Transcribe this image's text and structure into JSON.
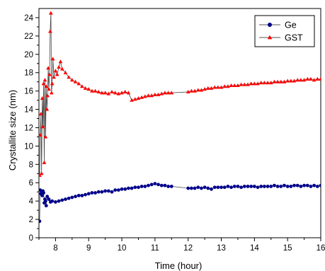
{
  "chart_data": {
    "type": "scatter",
    "xlabel": "Time (hour)",
    "ylabel": "Crystallite size (nm)",
    "xlim": [
      7.5,
      16
    ],
    "ylim": [
      0,
      25
    ],
    "xticks": [
      8,
      9,
      10,
      11,
      12,
      13,
      14,
      15,
      16
    ],
    "yticks": [
      0,
      2,
      4,
      6,
      8,
      10,
      12,
      14,
      16,
      18,
      20,
      22,
      24
    ],
    "grid": false,
    "legend": "top-right",
    "series": [
      {
        "name": "Ge",
        "color": "#00008b",
        "marker": "circle",
        "x": [
          7.52,
          7.54,
          7.56,
          7.58,
          7.6,
          7.62,
          7.64,
          7.66,
          7.68,
          7.7,
          7.72,
          7.75,
          7.8,
          7.85,
          7.9,
          8.0,
          8.1,
          8.2,
          8.3,
          8.4,
          8.5,
          8.6,
          8.7,
          8.8,
          8.9,
          9.0,
          9.1,
          9.2,
          9.3,
          9.4,
          9.5,
          9.6,
          9.7,
          9.8,
          9.9,
          10.0,
          10.1,
          10.2,
          10.3,
          10.4,
          10.5,
          10.6,
          10.7,
          10.8,
          10.9,
          11.0,
          11.1,
          11.2,
          11.3,
          11.4,
          11.5,
          12.0,
          12.1,
          12.2,
          12.3,
          12.4,
          12.5,
          12.6,
          12.7,
          12.8,
          12.9,
          13.0,
          13.1,
          13.2,
          13.3,
          13.4,
          13.5,
          13.6,
          13.7,
          13.8,
          13.9,
          14.0,
          14.1,
          14.2,
          14.3,
          14.4,
          14.5,
          14.6,
          14.7,
          14.8,
          14.9,
          15.0,
          15.1,
          15.2,
          15.3,
          15.4,
          15.5,
          15.6,
          15.7,
          15.8,
          15.9,
          16.0
        ],
        "y": [
          1.8,
          5.2,
          4.8,
          5.0,
          4.6,
          5.1,
          4.9,
          3.8,
          4.2,
          4.0,
          3.5,
          4.5,
          4.2,
          3.9,
          4.0,
          3.9,
          4.0,
          4.1,
          4.2,
          4.3,
          4.4,
          4.5,
          4.6,
          4.6,
          4.7,
          4.8,
          4.9,
          4.9,
          5.0,
          5.0,
          5.1,
          5.1,
          5.0,
          5.2,
          5.2,
          5.3,
          5.3,
          5.4,
          5.4,
          5.5,
          5.5,
          5.6,
          5.6,
          5.7,
          5.8,
          5.9,
          5.8,
          5.7,
          5.7,
          5.6,
          5.6,
          5.4,
          5.4,
          5.4,
          5.5,
          5.4,
          5.5,
          5.4,
          5.3,
          5.5,
          5.5,
          5.5,
          5.5,
          5.6,
          5.5,
          5.6,
          5.6,
          5.5,
          5.6,
          5.6,
          5.6,
          5.6,
          5.5,
          5.6,
          5.6,
          5.6,
          5.6,
          5.7,
          5.6,
          5.6,
          5.7,
          5.6,
          5.6,
          5.7,
          5.7,
          5.6,
          5.7,
          5.7,
          5.6,
          5.7,
          5.6,
          5.7
        ]
      },
      {
        "name": "GST",
        "color": "#ff0000",
        "marker": "triangle",
        "x": [
          7.52,
          7.54,
          7.56,
          7.58,
          7.6,
          7.62,
          7.64,
          7.66,
          7.68,
          7.7,
          7.72,
          7.74,
          7.76,
          7.78,
          7.8,
          7.82,
          7.84,
          7.86,
          7.88,
          7.9,
          7.92,
          7.95,
          8.0,
          8.05,
          8.1,
          8.15,
          8.2,
          8.3,
          8.4,
          8.5,
          8.6,
          8.7,
          8.8,
          8.9,
          9.0,
          9.1,
          9.2,
          9.3,
          9.4,
          9.5,
          9.6,
          9.7,
          9.8,
          9.9,
          10.0,
          10.1,
          10.2,
          10.3,
          10.4,
          10.5,
          10.6,
          10.7,
          10.8,
          10.9,
          11.0,
          11.1,
          11.2,
          11.3,
          11.4,
          11.5,
          12.0,
          12.1,
          12.2,
          12.3,
          12.4,
          12.5,
          12.6,
          12.7,
          12.8,
          12.9,
          13.0,
          13.1,
          13.2,
          13.3,
          13.4,
          13.5,
          13.6,
          13.7,
          13.8,
          13.9,
          14.0,
          14.1,
          14.2,
          14.3,
          14.4,
          14.5,
          14.6,
          14.7,
          14.8,
          14.9,
          15.0,
          15.1,
          15.2,
          15.3,
          15.4,
          15.5,
          15.6,
          15.7,
          15.8,
          15.9,
          16.0
        ],
        "y": [
          6.8,
          11.2,
          13.5,
          7.0,
          15.2,
          12.1,
          16.8,
          8.2,
          17.2,
          11.0,
          16.5,
          14.0,
          15.5,
          18.5,
          16.2,
          17.8,
          22.5,
          24.5,
          15.8,
          16.8,
          19.5,
          17.5,
          18.2,
          17.8,
          18.6,
          19.2,
          18.4,
          18.0,
          17.5,
          17.2,
          17.0,
          16.8,
          16.5,
          16.3,
          16.2,
          16.0,
          16.0,
          15.9,
          15.8,
          15.8,
          15.7,
          15.9,
          15.8,
          15.7,
          15.8,
          15.9,
          15.8,
          15.0,
          15.1,
          15.2,
          15.3,
          15.4,
          15.5,
          15.5,
          15.6,
          15.6,
          15.7,
          15.8,
          15.8,
          15.8,
          15.9,
          16.0,
          16.0,
          16.1,
          16.1,
          16.2,
          16.3,
          16.3,
          16.4,
          16.4,
          16.4,
          16.5,
          16.5,
          16.6,
          16.6,
          16.6,
          16.7,
          16.7,
          16.7,
          16.8,
          16.8,
          16.8,
          16.9,
          16.9,
          16.9,
          16.9,
          17.0,
          17.0,
          17.0,
          17.0,
          17.1,
          17.1,
          17.1,
          17.2,
          17.2,
          17.2,
          17.3,
          17.3,
          17.2,
          17.3,
          17.3
        ]
      }
    ]
  }
}
